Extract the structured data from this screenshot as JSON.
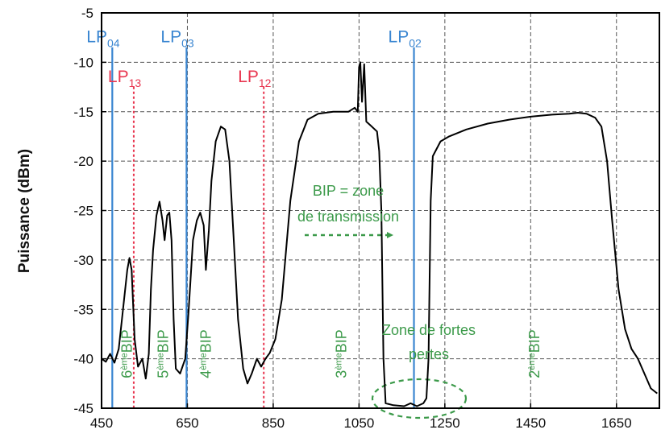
{
  "chart_data": {
    "type": "line",
    "title": "",
    "xlabel": "",
    "ylabel": "Puissance (dBm)",
    "xlim": [
      450,
      1750
    ],
    "ylim": [
      -45,
      -5
    ],
    "xticks": [
      450,
      650,
      850,
      1050,
      1250,
      1450,
      1650
    ],
    "yticks": [
      -5,
      -10,
      -15,
      -20,
      -25,
      -30,
      -35,
      -40,
      -45
    ],
    "grid": true,
    "series": [
      {
        "name": "",
        "color": "#000000",
        "points": [
          [
            450,
            -40
          ],
          [
            460,
            -40.3
          ],
          [
            470,
            -39.5
          ],
          [
            480,
            -40.4
          ],
          [
            490,
            -39
          ],
          [
            500,
            -35
          ],
          [
            510,
            -31
          ],
          [
            515,
            -29.8
          ],
          [
            520,
            -31
          ],
          [
            527,
            -38
          ],
          [
            535,
            -40.8
          ],
          [
            545,
            -40
          ],
          [
            553,
            -42
          ],
          [
            560,
            -39.5
          ],
          [
            565,
            -33
          ],
          [
            570,
            -29
          ],
          [
            578,
            -25.5
          ],
          [
            585,
            -24.1
          ],
          [
            592,
            -26
          ],
          [
            597,
            -28
          ],
          [
            603,
            -25.5
          ],
          [
            608,
            -25.2
          ],
          [
            613,
            -28
          ],
          [
            618,
            -36
          ],
          [
            623,
            -41
          ],
          [
            633,
            -41.5
          ],
          [
            645,
            -40
          ],
          [
            653,
            -35
          ],
          [
            663,
            -28
          ],
          [
            672,
            -26
          ],
          [
            680,
            -25.2
          ],
          [
            688,
            -26.5
          ],
          [
            693,
            -31
          ],
          [
            700,
            -27
          ],
          [
            706,
            -22
          ],
          [
            716,
            -18
          ],
          [
            728,
            -16.5
          ],
          [
            738,
            -16.8
          ],
          [
            748,
            -20
          ],
          [
            758,
            -28
          ],
          [
            768,
            -36
          ],
          [
            780,
            -41
          ],
          [
            790,
            -42.5
          ],
          [
            800,
            -41.5
          ],
          [
            812,
            -40
          ],
          [
            822,
            -40.8
          ],
          [
            832,
            -40
          ],
          [
            842,
            -39.4
          ],
          [
            855,
            -38
          ],
          [
            870,
            -34
          ],
          [
            890,
            -24
          ],
          [
            910,
            -18
          ],
          [
            930,
            -15.8
          ],
          [
            955,
            -15.2
          ],
          [
            990,
            -15
          ],
          [
            1025,
            -15
          ],
          [
            1040,
            -14.6
          ],
          [
            1047,
            -15
          ],
          [
            1050,
            -10.5
          ],
          [
            1053,
            -10
          ],
          [
            1057,
            -14
          ],
          [
            1062,
            -10.2
          ],
          [
            1067,
            -16
          ],
          [
            1077,
            -16.4
          ],
          [
            1092,
            -17
          ],
          [
            1097,
            -19
          ],
          [
            1102,
            -25
          ],
          [
            1107,
            -40
          ],
          [
            1112,
            -44.5
          ],
          [
            1130,
            -44.7
          ],
          [
            1155,
            -44.8
          ],
          [
            1170,
            -44.5
          ],
          [
            1185,
            -44.8
          ],
          [
            1200,
            -44.5
          ],
          [
            1207,
            -44
          ],
          [
            1212,
            -40
          ],
          [
            1217,
            -24
          ],
          [
            1222,
            -19.5
          ],
          [
            1240,
            -18
          ],
          [
            1260,
            -17.5
          ],
          [
            1300,
            -16.8
          ],
          [
            1350,
            -16.2
          ],
          [
            1400,
            -15.8
          ],
          [
            1450,
            -15.5
          ],
          [
            1500,
            -15.3
          ],
          [
            1540,
            -15.2
          ],
          [
            1560,
            -15.1
          ],
          [
            1580,
            -15.2
          ],
          [
            1600,
            -15.6
          ],
          [
            1615,
            -16.5
          ],
          [
            1628,
            -20
          ],
          [
            1640,
            -26
          ],
          [
            1655,
            -33
          ],
          [
            1670,
            -37
          ],
          [
            1685,
            -39
          ],
          [
            1700,
            -40
          ],
          [
            1715,
            -41.5
          ],
          [
            1730,
            -43
          ],
          [
            1745,
            -43.5
          ]
        ]
      }
    ],
    "mode_markers": [
      {
        "main": "LP",
        "sub": "04",
        "x": 475,
        "color": "#3a86d1",
        "style": "solid",
        "label_y": -7.5
      },
      {
        "main": "LP",
        "sub": "13",
        "x": 525,
        "color": "#e8354f",
        "style": "dotted",
        "label_y": -11.5
      },
      {
        "main": "LP",
        "sub": "03",
        "x": 648,
        "color": "#3a86d1",
        "style": "solid",
        "label_y": -7.5
      },
      {
        "main": "LP",
        "sub": "12",
        "x": 828,
        "color": "#e8354f",
        "style": "dotted",
        "label_y": -11.5
      },
      {
        "main": "LP",
        "sub": "02",
        "x": 1178,
        "color": "#3a86d1",
        "style": "solid",
        "label_y": -7.5
      }
    ],
    "bip_labels": [
      {
        "num": "6",
        "sup": "ème",
        "word": "BIP",
        "x": 520,
        "y": -39.5
      },
      {
        "num": "5",
        "sup": "ème",
        "word": "BIP",
        "x": 605,
        "y": -39.5
      },
      {
        "num": "4",
        "sup": "ème",
        "word": "BIP",
        "x": 705,
        "y": -39.5
      },
      {
        "num": "3",
        "sup": "ème",
        "word": "BIP",
        "x": 1020,
        "y": -39.5
      },
      {
        "num": "2",
        "sup": "ème",
        "word": "BIP",
        "x": 1470,
        "y": -39.5
      }
    ],
    "annotations": {
      "transmission_line1": "BIP = zone",
      "transmission_line2": "de transmission",
      "pertes_line1": "Zone de fortes",
      "pertes_line2": "pertes"
    }
  }
}
